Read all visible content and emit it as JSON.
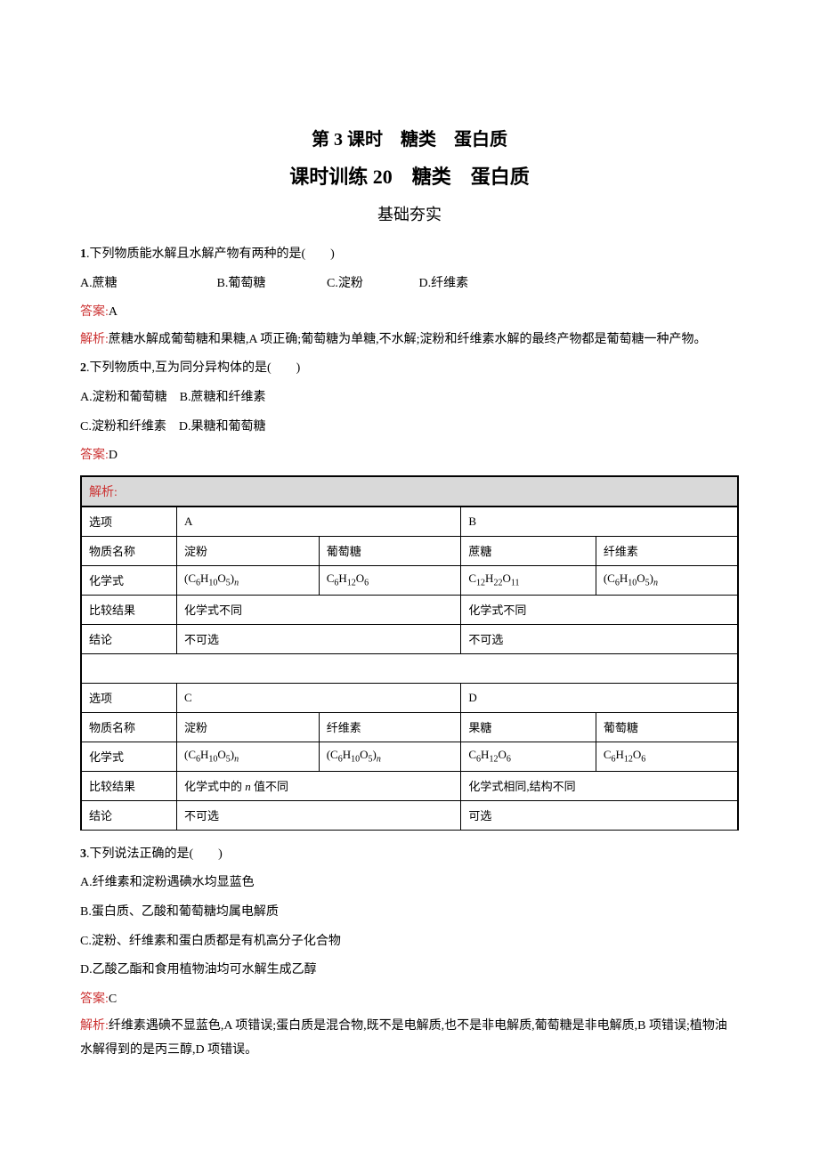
{
  "titles": {
    "l1": "第 3 课时　糖类　蛋白质",
    "l2": "课时训练 20　糖类　蛋白质",
    "l3": "基础夯实"
  },
  "q1": {
    "stem_num": "1",
    "stem": ".下列物质能水解且水解产物有两种的是(　　)",
    "optA": "A.蔗糖",
    "optB": "B.葡萄糖",
    "optC": "C.淀粉",
    "optD": "D.纤维素",
    "ans_label": "答案:",
    "ans": "A",
    "exp_label": "解析:",
    "exp": "蔗糖水解成葡萄糖和果糖,A 项正确;葡萄糖为单糖,不水解;淀粉和纤维素水解的最终产物都是葡萄糖一种产物。"
  },
  "q2": {
    "stem_num": "2",
    "stem": ".下列物质中,互为同分异构体的是(　　)",
    "optA": "A.淀粉和葡萄糖",
    "optB": "B.蔗糖和纤维素",
    "optC": "C.淀粉和纤维素",
    "optD": "D.果糖和葡萄糖",
    "ans_label": "答案:",
    "ans": "D",
    "exp_label": "解析:"
  },
  "table": {
    "row_labels": {
      "option": "选项",
      "name": "物质名称",
      "formula": "化学式",
      "compare": "比较结果",
      "conclusion": "结论"
    },
    "top": {
      "colA": "A",
      "colB": "B",
      "nameA1": "淀粉",
      "nameA2": "葡萄糖",
      "nameB1": "蔗糖",
      "nameB2": "纤维素",
      "cmpA": "化学式不同",
      "cmpB": "化学式不同",
      "conA": "不可选",
      "conB": "不可选"
    },
    "bottom": {
      "colC": "C",
      "colD": "D",
      "nameC1": "淀粉",
      "nameC2": "纤维素",
      "nameD1": "果糖",
      "nameD2": "葡萄糖",
      "cmpC_pre": "化学式中的 ",
      "cmpC_post": " 值不同",
      "cmpD": "化学式相同,结构不同",
      "conC": "不可选",
      "conD": "可选"
    },
    "formulas": {
      "C6H10O5n_pre": "(C",
      "C6H10O5n_s1": "6",
      "C6H10O5n_m1": "H",
      "C6H10O5n_s2": "10",
      "C6H10O5n_m2": "O",
      "C6H10O5n_s3": "5",
      "C6H10O5n_post": ")",
      "C6H12O6_pre": "C",
      "C6H12O6_s1": "6",
      "C6H12O6_m1": "H",
      "C6H12O6_s2": "12",
      "C6H12O6_m2": "O",
      "C6H12O6_s3": "6",
      "C12H22O11_pre": "C",
      "C12H22O11_s1": "12",
      "C12H22O11_m1": "H",
      "C12H22O11_s2": "22",
      "C12H22O11_m2": "O",
      "C12H22O11_s3": "11",
      "n": "n"
    }
  },
  "q3": {
    "stem_num": "3",
    "stem": ".下列说法正确的是(　　)",
    "optA": "A.纤维素和淀粉遇碘水均显蓝色",
    "optB": "B.蛋白质、乙酸和葡萄糖均属电解质",
    "optC": "C.淀粉、纤维素和蛋白质都是有机高分子化合物",
    "optD": "D.乙酸乙酯和食用植物油均可水解生成乙醇",
    "ans_label": "答案:",
    "ans": "C",
    "exp_label": "解析:",
    "exp": "纤维素遇碘不显蓝色,A 项错误;蛋白质是混合物,既不是电解质,也不是非电解质,葡萄糖是非电解质,B 项错误;植物油水解得到的是丙三醇,D 项错误。"
  },
  "colors": {
    "text": "#000000",
    "red": "#cc3333",
    "header_bg": "#d9d9d9",
    "page_bg": "#ffffff"
  }
}
